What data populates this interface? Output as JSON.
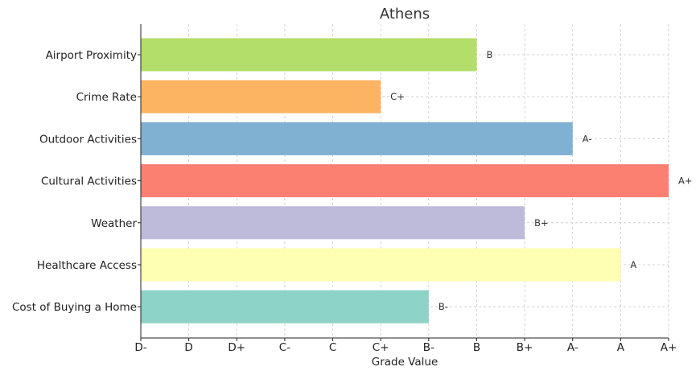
{
  "chart_data": {
    "type": "bar",
    "orientation": "horizontal",
    "title": "Athens",
    "xlabel": "Grade Value",
    "ylabel": "",
    "grade_scale": [
      "D-",
      "D",
      "D+",
      "C-",
      "C",
      "C+",
      "B-",
      "B",
      "B+",
      "A-",
      "A",
      "A+"
    ],
    "categories": [
      "Airport Proximity",
      "Crime Rate",
      "Outdoor Activities",
      "Cultural Activities",
      "Weather",
      "Healthcare Access",
      "Cost of Buying a Home"
    ],
    "values": [
      7,
      5,
      9,
      11,
      8,
      10,
      6
    ],
    "value_labels": [
      "B",
      "C+",
      "A-",
      "A+",
      "B+",
      "A",
      "B-"
    ],
    "colors": [
      "#b3de69",
      "#fdb462",
      "#80b1d3",
      "#fb8072",
      "#bebada",
      "#ffffb3",
      "#8dd3c7"
    ],
    "xlim": [
      0,
      11
    ],
    "grid": true
  }
}
